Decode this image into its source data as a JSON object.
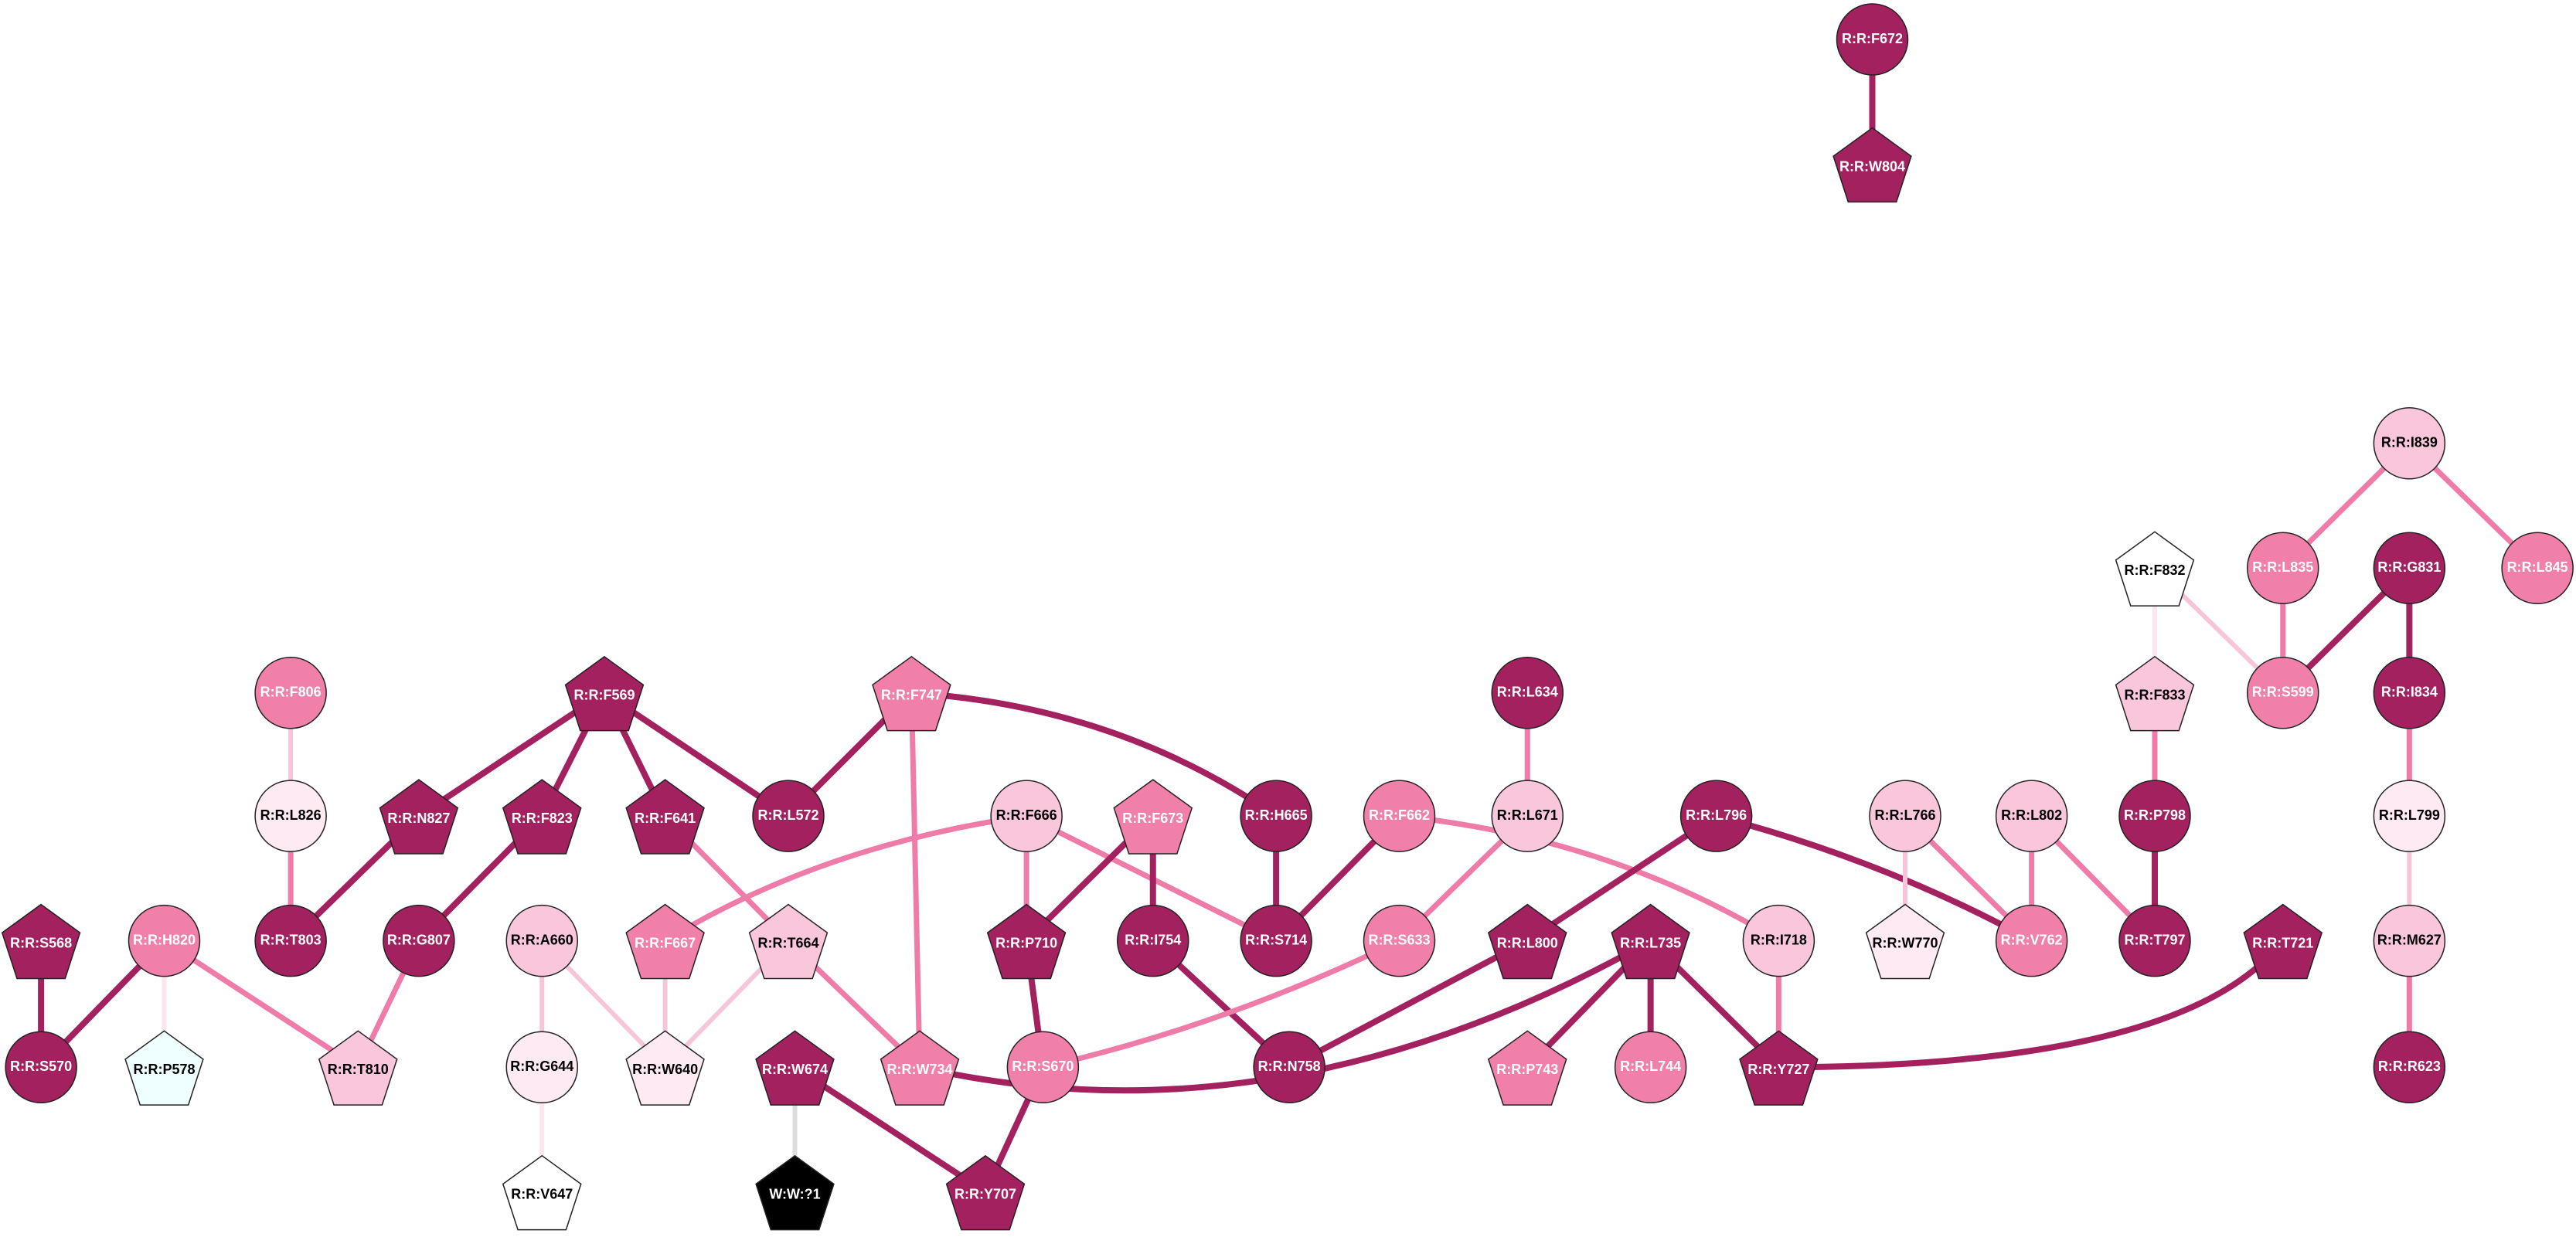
{
  "nodes": [
    {
      "label": "R:R:F672"
    },
    {
      "label": "R:R:W804"
    },
    {
      "label": "R:R:I839"
    },
    {
      "label": "R:R:F832"
    },
    {
      "label": "R:R:L835"
    },
    {
      "label": "R:R:G831"
    },
    {
      "label": "R:R:L845"
    },
    {
      "label": "R:R:F806"
    },
    {
      "label": "R:R:F569"
    },
    {
      "label": "R:R:F747"
    },
    {
      "label": "R:R:L634"
    },
    {
      "label": "R:R:F833"
    },
    {
      "label": "R:R:S599"
    },
    {
      "label": "R:R:I834"
    },
    {
      "label": "R:R:L826"
    },
    {
      "label": "R:R:N827"
    },
    {
      "label": "R:R:F823"
    },
    {
      "label": "R:R:F641"
    },
    {
      "label": "R:R:L572"
    },
    {
      "label": "R:R:F666"
    },
    {
      "label": "R:R:F673"
    },
    {
      "label": "R:R:H665"
    },
    {
      "label": "R:R:F662"
    },
    {
      "label": "R:R:L671"
    },
    {
      "label": "R:R:L796"
    },
    {
      "label": "R:R:L766"
    },
    {
      "label": "R:R:L802"
    },
    {
      "label": "R:R:P798"
    },
    {
      "label": "R:R:L799"
    },
    {
      "label": "R:R:S568"
    },
    {
      "label": "R:R:H820"
    },
    {
      "label": "R:R:T803"
    },
    {
      "label": "R:R:G807"
    },
    {
      "label": "R:R:A660"
    },
    {
      "label": "R:R:F667"
    },
    {
      "label": "R:R:T664"
    },
    {
      "label": "R:R:P710"
    },
    {
      "label": "R:R:I754"
    },
    {
      "label": "R:R:S714"
    },
    {
      "label": "R:R:S633"
    },
    {
      "label": "R:R:L800"
    },
    {
      "label": "R:R:L735"
    },
    {
      "label": "R:R:I718"
    },
    {
      "label": "R:R:W770"
    },
    {
      "label": "R:R:V762"
    },
    {
      "label": "R:R:T797"
    },
    {
      "label": "R:R:T721"
    },
    {
      "label": "R:R:M627"
    },
    {
      "label": "R:R:S570"
    },
    {
      "label": "R:R:P578"
    },
    {
      "label": "R:R:T810"
    },
    {
      "label": "R:R:G644"
    },
    {
      "label": "R:R:W640"
    },
    {
      "label": "R:R:W674"
    },
    {
      "label": "R:R:W734"
    },
    {
      "label": "R:R:S670"
    },
    {
      "label": "R:R:N758"
    },
    {
      "label": "R:R:P743"
    },
    {
      "label": "R:R:L744"
    },
    {
      "label": "R:R:Y727"
    },
    {
      "label": "R:R:R623"
    },
    {
      "label": "R:R:V647"
    },
    {
      "label": "W:W:?1"
    },
    {
      "label": "R:R:Y707"
    }
  ]
}
